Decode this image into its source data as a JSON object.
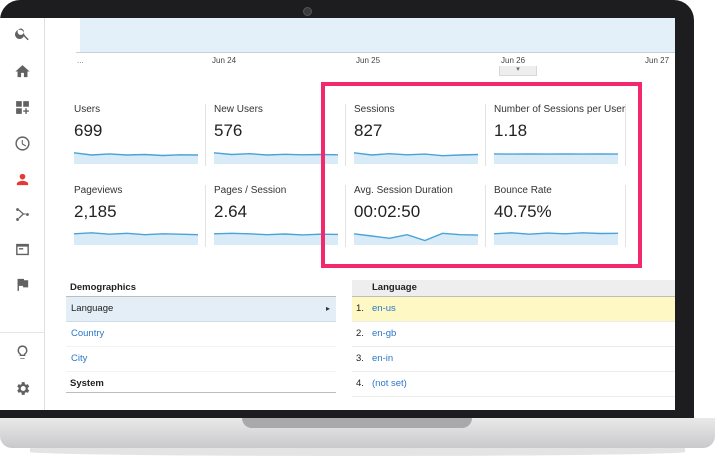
{
  "timeline": {
    "leading": "...",
    "dates": [
      "Jun 24",
      "Jun 25",
      "Jun 26",
      "Jun 27"
    ],
    "expand_glyph": "▾"
  },
  "nav": {
    "icons": [
      "search-icon",
      "home-icon",
      "dashboard-icon",
      "clock-icon",
      "person-icon",
      "acquisition-icon",
      "behavior-icon",
      "flag-icon",
      "lightbulb-icon",
      "gear-icon"
    ]
  },
  "metrics": [
    {
      "label": "Users",
      "value": "699",
      "trend": [
        5,
        4,
        4.5,
        4,
        4.2,
        3.8,
        4.1,
        4
      ]
    },
    {
      "label": "New Users",
      "value": "576",
      "trend": [
        5,
        4.2,
        4.6,
        4,
        4.3,
        4.1,
        4.2,
        4.1
      ]
    },
    {
      "label": "Sessions",
      "value": "827",
      "trend": [
        5,
        4,
        4.6,
        4.1,
        4.4,
        3.7,
        4,
        4.2
      ]
    },
    {
      "label": "Number of Sessions per User",
      "value": "1.18",
      "trend": [
        4.5,
        4.4,
        4.5,
        4.4,
        4.5,
        4.4,
        4.5,
        4.4
      ]
    },
    {
      "label": "Pageviews",
      "value": "2,185",
      "trend": [
        5,
        5.4,
        4.8,
        5.2,
        4.6,
        5,
        4.8,
        4.6
      ]
    },
    {
      "label": "Pages / Session",
      "value": "2.64",
      "trend": [
        5,
        5.2,
        5,
        4.6,
        4.9,
        4.5,
        4.8,
        4.7
      ]
    },
    {
      "label": "Avg. Session Duration",
      "value": "00:02:50",
      "trend": [
        5,
        4,
        3,
        4.6,
        2,
        5.2,
        4.6,
        4.4
      ]
    },
    {
      "label": "Bounce Rate",
      "value": "40.75%",
      "trend": [
        5,
        5.4,
        4.8,
        5.3,
        5,
        5.4,
        5.1,
        5.2
      ]
    }
  ],
  "demographics": {
    "header": "Demographics",
    "items": [
      {
        "label": "Language",
        "selected": true,
        "caret": "▸"
      },
      {
        "label": "Country",
        "selected": false
      },
      {
        "label": "City",
        "selected": false
      }
    ],
    "system_header": "System"
  },
  "language": {
    "header": "Language",
    "rows": [
      {
        "rank": "1.",
        "name": "en-us"
      },
      {
        "rank": "2.",
        "name": "en-gb"
      },
      {
        "rank": "3.",
        "name": "en-in"
      },
      {
        "rank": "4.",
        "name": "(not set)"
      }
    ]
  },
  "colors": {
    "accent": "#f2296e",
    "sparkline": "#4aa3d8",
    "sparkfill": "#d8ebf7",
    "link": "#2a77c8",
    "selected_row": "#e4eef6",
    "highlight_row": "#fdf8c4"
  }
}
